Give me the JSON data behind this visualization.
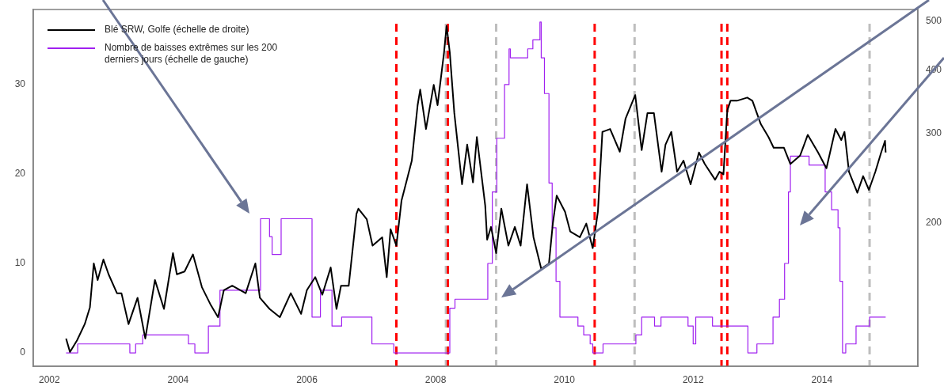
{
  "chart_data": {
    "type": "line",
    "legend": "top left",
    "marker": "none",
    "grid": false,
    "xlim": [
      2001.75,
      2015.49
    ],
    "xticks": [
      2002,
      2004,
      2006,
      2008,
      2010,
      2012,
      2014
    ],
    "ylim": [
      -1.5,
      38.4
    ],
    "yticks": [
      0,
      10,
      20,
      30
    ],
    "log": "y2",
    "y2lim": [
      104,
      527
    ],
    "y2ticks": [
      200,
      300,
      400,
      500
    ],
    "series": [
      {
        "name": "Blé SRW, Golfe (échelle de droite)",
        "type": "line",
        "axis": "y2",
        "color": "#000000",
        "x": [
          2002.26,
          2002.32,
          2002.43,
          2002.55,
          2002.63,
          2002.69,
          2002.75,
          2002.84,
          2002.92,
          2003.05,
          2003.12,
          2003.23,
          2003.37,
          2003.49,
          2003.64,
          2003.78,
          2003.92,
          2003.98,
          2004.1,
          2004.23,
          2004.37,
          2004.5,
          2004.62,
          2004.71,
          2004.84,
          2005.05,
          2005.2,
          2005.27,
          2005.42,
          2005.58,
          2005.75,
          2005.91,
          2006.0,
          2006.13,
          2006.24,
          2006.37,
          2006.46,
          2006.53,
          2006.65,
          2006.77,
          2006.8,
          2006.93,
          2007.02,
          2007.17,
          2007.24,
          2007.3,
          2007.39,
          2007.47,
          2007.63,
          2007.72,
          2007.76,
          2007.85,
          2007.97,
          2008.03,
          2008.13,
          2008.17,
          2008.22,
          2008.29,
          2008.41,
          2008.49,
          2008.58,
          2008.64,
          2008.77,
          2008.8,
          2008.86,
          2008.94,
          2009.02,
          2009.13,
          2009.23,
          2009.32,
          2009.42,
          2009.52,
          2009.64,
          2009.76,
          2009.82,
          2009.88,
          2010.01,
          2010.09,
          2010.24,
          2010.34,
          2010.44,
          2010.52,
          2010.59,
          2010.71,
          2010.86,
          2010.95,
          2011.1,
          2011.2,
          2011.29,
          2011.39,
          2011.51,
          2011.57,
          2011.66,
          2011.75,
          2011.85,
          2011.96,
          2012.09,
          2012.18,
          2012.34,
          2012.41,
          2012.47,
          2012.53,
          2012.58,
          2012.68,
          2012.84,
          2012.92,
          2013.05,
          2013.17,
          2013.25,
          2013.41,
          2013.51,
          2013.66,
          2013.78,
          2013.94,
          2014.07,
          2014.21,
          2014.3,
          2014.35,
          2014.42,
          2014.55,
          2014.64,
          2014.73,
          2014.83,
          2014.92,
          2014.98,
          2014.99
        ],
        "values": [
          118,
          111,
          117,
          126,
          136,
          166,
          154,
          169,
          158,
          145,
          145,
          126,
          142,
          118,
          154,
          135,
          174,
          158,
          160,
          173,
          149,
          138,
          130,
          147,
          150,
          145,
          166,
          142,
          135,
          130,
          145,
          132,
          147,
          156,
          144,
          163,
          135,
          150,
          150,
          208,
          213,
          203,
          180,
          187,
          156,
          194,
          180,
          221,
          265,
          341,
          366,
          306,
          374,
          341,
          433,
          489,
          433,
          329,
          238,
          285,
          240,
          295,
          216,
          185,
          196,
          174,
          213,
          180,
          196,
          180,
          238,
          187,
          162,
          166,
          199,
          226,
          210,
          192,
          187,
          199,
          178,
          210,
          302,
          306,
          276,
          321,
          357,
          278,
          329,
          329,
          252,
          285,
          302,
          252,
          265,
          238,
          275,
          261,
          243,
          252,
          249,
          333,
          348,
          348,
          353,
          348,
          313,
          295,
          281,
          281,
          261,
          271,
          298,
          275,
          256,
          306,
          291,
          302,
          252,
          229,
          247,
          232,
          252,
          275,
          290,
          275
        ]
      },
      {
        "name": "Nombre de baisses extrêmes sur les 200 derniers jours (échelle de gauche)",
        "type": "step",
        "color": "#a020f0",
        "x": [
          2002.26,
          2002.44,
          2003.25,
          2003.34,
          2003.45,
          2004.16,
          2004.26,
          2004.47,
          2004.65,
          2005.28,
          2005.42,
          2005.46,
          2005.6,
          2006.08,
          2006.21,
          2006.39,
          2006.54,
          2007.01,
          2007.35,
          2008.22,
          2008.3,
          2008.81,
          2008.88,
          2008.95,
          2009.07,
          2009.14,
          2009.16,
          2009.43,
          2009.51,
          2009.62,
          2009.64,
          2009.69,
          2009.76,
          2009.81,
          2009.87,
          2009.93,
          2010.21,
          2010.3,
          2010.4,
          2010.44,
          2010.6,
          2011.11,
          2011.2,
          2011.4,
          2011.5,
          2011.92,
          2012.0,
          2012.04,
          2012.3,
          2012.85,
          2012.99,
          2013.24,
          2013.34,
          2013.42,
          2013.48,
          2013.51,
          2013.8,
          2014.05,
          2014.15,
          2014.25,
          2014.28,
          2014.32,
          2014.37,
          2014.53,
          2014.74,
          2014.99
        ],
        "values": [
          0,
          1,
          0,
          1,
          2,
          1,
          0,
          3,
          7,
          15,
          13,
          11,
          15,
          4,
          7,
          3,
          4,
          1,
          0,
          5,
          6,
          10,
          18,
          24,
          30,
          34,
          33,
          34,
          35,
          37,
          33,
          29,
          19,
          14,
          8,
          4,
          3,
          2,
          1,
          0,
          1,
          2,
          4,
          3,
          4,
          3,
          1,
          4,
          3,
          0,
          1,
          4,
          6,
          10,
          18,
          22,
          21,
          18,
          16,
          14,
          8,
          0,
          1,
          3,
          4,
          4
        ]
      }
    ],
    "ref_lines": [
      {
        "axis": "x",
        "value": 2007.39,
        "color": "#ff0000",
        "line_style": "dashed"
      },
      {
        "axis": "x",
        "value": 2008.16,
        "color": "#bebebe",
        "line_style": "dashed"
      },
      {
        "axis": "x",
        "value": 2008.19,
        "color": "#ff0000",
        "line_style": "dashed"
      },
      {
        "axis": "x",
        "value": 2008.94,
        "color": "#bebebe",
        "line_style": "dashed"
      },
      {
        "axis": "x",
        "value": 2010.47,
        "color": "#ff0000",
        "line_style": "dashed"
      },
      {
        "axis": "x",
        "value": 2011.09,
        "color": "#bebebe",
        "line_style": "dashed"
      },
      {
        "axis": "x",
        "value": 2012.44,
        "color": "#ff0000",
        "line_style": "dashed"
      },
      {
        "axis": "x",
        "value": 2012.53,
        "color": "#ff0000",
        "line_style": "dashed"
      },
      {
        "axis": "x",
        "value": 2014.74,
        "color": "#bebebe",
        "line_style": "dashed"
      }
    ]
  }
}
